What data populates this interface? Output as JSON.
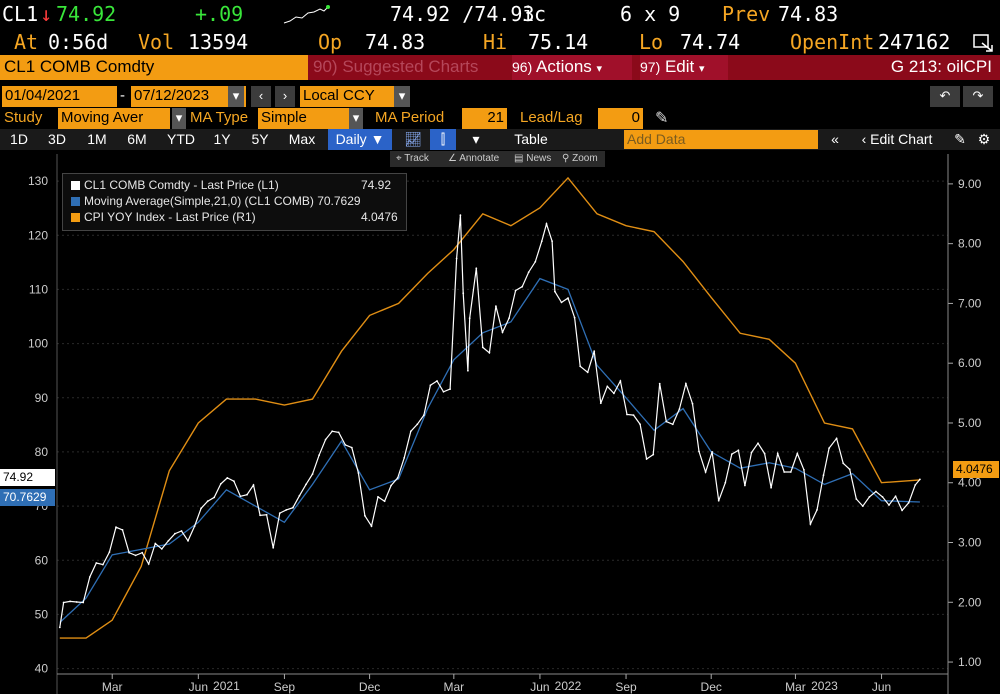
{
  "quote": {
    "ticker": "CL1",
    "arrow": "↓",
    "last": "74.92",
    "change": "+.09",
    "bid_ask": "74.92 /74.93",
    "bid_ask_suffix": "ic",
    "size": "6 x 9",
    "prev_label": "Prev",
    "prev": "74.83",
    "at_label": "At",
    "at_time": "0:56d",
    "vol_label": "Vol",
    "vol": "13594",
    "op_label": "Op",
    "op": "74.83",
    "hi_label": "Hi",
    "hi": "75.14",
    "lo_label": "Lo",
    "lo": "74.74",
    "openint_label": "OpenInt",
    "openint": "247162"
  },
  "titlebar": {
    "security": "CL1 COMB Comdty",
    "suggested_num": "90)",
    "suggested": "Suggested Charts",
    "actions_num": "96)",
    "actions": "Actions",
    "edit_num": "97)",
    "edit": "Edit",
    "chart_title": "G 213: oilCPI"
  },
  "controls": {
    "start_date": "01/04/2021",
    "end_date": "07/12/2023",
    "currency": "Local CCY",
    "study_label": "Study",
    "study": "Moving Aver",
    "ma_type_label": "MA Type",
    "ma_type": "Simple",
    "ma_period_label": "MA Period",
    "ma_period": "21",
    "lead_lag_label": "Lead/Lag",
    "lead_lag": "0",
    "periods": [
      "1D",
      "3D",
      "1M",
      "6M",
      "YTD",
      "1Y",
      "5Y",
      "Max"
    ],
    "frequency": "Daily",
    "table": "Table",
    "add_data_placeholder": "Add Data",
    "edit_chart": "Edit Chart",
    "tools": [
      "Track",
      "Annotate",
      "News",
      "Zoom"
    ]
  },
  "chart_data": {
    "type": "line",
    "legend": [
      {
        "label": "CL1 COMB Comdty - Last Price (L1)",
        "value": "74.92",
        "color": "#ffffff"
      },
      {
        "label": "Moving Average(Simple,21,0) (CL1 COMB) 70.7629",
        "value": "",
        "color": "#2f6fb5"
      },
      {
        "label": "CPI YOY Index - Last Price (R1)",
        "value": "4.0476",
        "color": "#f39c12"
      }
    ],
    "legend_placement": "top-left",
    "left_axis": {
      "ticks": [
        40,
        50,
        60,
        70,
        80,
        90,
        100,
        110,
        120,
        130
      ],
      "range": [
        39,
        135
      ]
    },
    "right_axis": {
      "ticks": [
        "1.00",
        "2.00",
        "3.00",
        "4.00",
        "5.00",
        "6.00",
        "7.00",
        "8.00",
        "9.00"
      ],
      "range": [
        0.8,
        9.5
      ]
    },
    "x_range": [
      "2021-01-04",
      "2023-07-12"
    ],
    "x_ticks": [
      {
        "label": "Mar",
        "date": "2021-03-01"
      },
      {
        "label": "Jun",
        "date": "2021-06-01"
      },
      {
        "label": "Sep",
        "date": "2021-09-01"
      },
      {
        "label": "Dec",
        "date": "2021-12-01"
      },
      {
        "label": "Mar",
        "date": "2022-03-01"
      },
      {
        "label": "Jun",
        "date": "2022-06-01"
      },
      {
        "label": "Sep",
        "date": "2022-09-01"
      },
      {
        "label": "Dec",
        "date": "2022-12-01"
      },
      {
        "label": "Mar",
        "date": "2023-03-01"
      },
      {
        "label": "Jun",
        "date": "2023-06-01"
      }
    ],
    "years": [
      {
        "label": "2021",
        "date": "2021-07-01"
      },
      {
        "label": "2022",
        "date": "2022-07-01"
      },
      {
        "label": "2023",
        "date": "2023-04-01"
      }
    ],
    "year_separators": [
      "2022-01-01",
      "2023-01-01"
    ],
    "price_series": [
      [
        "2021-01-04",
        47.6
      ],
      [
        "2021-01-08",
        52.2
      ],
      [
        "2021-01-15",
        52.4
      ],
      [
        "2021-01-22",
        52.3
      ],
      [
        "2021-01-29",
        52.2
      ],
      [
        "2021-02-05",
        56.9
      ],
      [
        "2021-02-12",
        59.5
      ],
      [
        "2021-02-19",
        59.2
      ],
      [
        "2021-02-26",
        61.5
      ],
      [
        "2021-03-05",
        66.1
      ],
      [
        "2021-03-12",
        65.6
      ],
      [
        "2021-03-19",
        61.4
      ],
      [
        "2021-03-26",
        60.9
      ],
      [
        "2021-04-02",
        61.4
      ],
      [
        "2021-04-09",
        59.3
      ],
      [
        "2021-04-16",
        63.1
      ],
      [
        "2021-04-23",
        62.1
      ],
      [
        "2021-04-30",
        63.6
      ],
      [
        "2021-05-07",
        64.9
      ],
      [
        "2021-05-14",
        65.4
      ],
      [
        "2021-05-21",
        63.6
      ],
      [
        "2021-05-28",
        66.3
      ],
      [
        "2021-06-04",
        69.6
      ],
      [
        "2021-06-11",
        70.9
      ],
      [
        "2021-06-18",
        71.6
      ],
      [
        "2021-06-25",
        74.1
      ],
      [
        "2021-07-02",
        75.2
      ],
      [
        "2021-07-09",
        74.6
      ],
      [
        "2021-07-16",
        71.8
      ],
      [
        "2021-07-23",
        72.1
      ],
      [
        "2021-07-30",
        73.9
      ],
      [
        "2021-08-06",
        68.3
      ],
      [
        "2021-08-13",
        68.4
      ],
      [
        "2021-08-20",
        62.3
      ],
      [
        "2021-08-27",
        68.7
      ],
      [
        "2021-09-03",
        69.3
      ],
      [
        "2021-09-10",
        69.7
      ],
      [
        "2021-09-17",
        71.9
      ],
      [
        "2021-09-24",
        74.0
      ],
      [
        "2021-10-01",
        75.9
      ],
      [
        "2021-10-08",
        79.4
      ],
      [
        "2021-10-15",
        82.3
      ],
      [
        "2021-10-22",
        83.8
      ],
      [
        "2021-10-29",
        83.6
      ],
      [
        "2021-11-05",
        81.3
      ],
      [
        "2021-11-12",
        80.8
      ],
      [
        "2021-11-19",
        76.1
      ],
      [
        "2021-11-26",
        68.2
      ],
      [
        "2021-12-03",
        66.3
      ],
      [
        "2021-12-10",
        71.7
      ],
      [
        "2021-12-17",
        70.9
      ],
      [
        "2021-12-24",
        73.8
      ],
      [
        "2021-12-31",
        75.2
      ],
      [
        "2022-01-07",
        78.9
      ],
      [
        "2022-01-14",
        83.8
      ],
      [
        "2022-01-21",
        85.1
      ],
      [
        "2022-01-28",
        86.8
      ],
      [
        "2022-02-04",
        92.3
      ],
      [
        "2022-02-11",
        93.1
      ],
      [
        "2022-02-18",
        91.1
      ],
      [
        "2022-02-25",
        91.6
      ],
      [
        "2022-03-04",
        115.7
      ],
      [
        "2022-03-08",
        123.7
      ],
      [
        "2022-03-11",
        109.3
      ],
      [
        "2022-03-16",
        95.0
      ],
      [
        "2022-03-18",
        104.7
      ],
      [
        "2022-03-25",
        113.9
      ],
      [
        "2022-04-01",
        99.3
      ],
      [
        "2022-04-08",
        98.3
      ],
      [
        "2022-04-15",
        106.9
      ],
      [
        "2022-04-22",
        102.1
      ],
      [
        "2022-04-29",
        104.7
      ],
      [
        "2022-05-06",
        109.8
      ],
      [
        "2022-05-13",
        110.5
      ],
      [
        "2022-05-20",
        113.2
      ],
      [
        "2022-05-27",
        115.1
      ],
      [
        "2022-06-03",
        118.9
      ],
      [
        "2022-06-08",
        122.1
      ],
      [
        "2022-06-14",
        118.9
      ],
      [
        "2022-06-17",
        109.6
      ],
      [
        "2022-06-24",
        107.6
      ],
      [
        "2022-07-01",
        108.4
      ],
      [
        "2022-07-08",
        104.8
      ],
      [
        "2022-07-14",
        95.8
      ],
      [
        "2022-07-22",
        94.7
      ],
      [
        "2022-07-29",
        98.6
      ],
      [
        "2022-08-05",
        89.0
      ],
      [
        "2022-08-12",
        92.1
      ],
      [
        "2022-08-19",
        90.8
      ],
      [
        "2022-08-26",
        93.1
      ],
      [
        "2022-09-02",
        86.9
      ],
      [
        "2022-09-09",
        86.8
      ],
      [
        "2022-09-16",
        85.1
      ],
      [
        "2022-09-23",
        78.7
      ],
      [
        "2022-09-30",
        79.5
      ],
      [
        "2022-10-07",
        92.6
      ],
      [
        "2022-10-14",
        85.6
      ],
      [
        "2022-10-21",
        85.1
      ],
      [
        "2022-10-28",
        87.9
      ],
      [
        "2022-11-04",
        92.6
      ],
      [
        "2022-11-11",
        88.9
      ],
      [
        "2022-11-18",
        80.1
      ],
      [
        "2022-11-25",
        76.3
      ],
      [
        "2022-12-02",
        80.0
      ],
      [
        "2022-12-09",
        71.0
      ],
      [
        "2022-12-16",
        74.3
      ],
      [
        "2022-12-23",
        79.6
      ],
      [
        "2022-12-30",
        80.3
      ],
      [
        "2023-01-06",
        73.8
      ],
      [
        "2023-01-13",
        79.9
      ],
      [
        "2023-01-20",
        81.6
      ],
      [
        "2023-01-27",
        79.7
      ],
      [
        "2023-02-03",
        73.4
      ],
      [
        "2023-02-10",
        79.7
      ],
      [
        "2023-02-17",
        76.3
      ],
      [
        "2023-02-24",
        76.3
      ],
      [
        "2023-03-03",
        79.7
      ],
      [
        "2023-03-10",
        76.7
      ],
      [
        "2023-03-17",
        66.7
      ],
      [
        "2023-03-24",
        69.3
      ],
      [
        "2023-03-31",
        75.7
      ],
      [
        "2023-04-06",
        80.7
      ],
      [
        "2023-04-14",
        82.5
      ],
      [
        "2023-04-21",
        77.9
      ],
      [
        "2023-04-28",
        76.8
      ],
      [
        "2023-05-05",
        71.3
      ],
      [
        "2023-05-12",
        70.0
      ],
      [
        "2023-05-19",
        71.7
      ],
      [
        "2023-05-26",
        72.7
      ],
      [
        "2023-06-02",
        71.7
      ],
      [
        "2023-06-09",
        70.2
      ],
      [
        "2023-06-16",
        71.8
      ],
      [
        "2023-06-23",
        69.2
      ],
      [
        "2023-06-30",
        70.6
      ],
      [
        "2023-07-07",
        73.9
      ],
      [
        "2023-07-12",
        74.92
      ]
    ],
    "ma_series": [
      [
        "2021-01-04",
        48.5
      ],
      [
        "2021-02-01",
        53.0
      ],
      [
        "2021-03-01",
        61.0
      ],
      [
        "2021-04-01",
        62.0
      ],
      [
        "2021-05-01",
        63.0
      ],
      [
        "2021-06-01",
        67.0
      ],
      [
        "2021-07-01",
        73.0
      ],
      [
        "2021-08-01",
        70.0
      ],
      [
        "2021-09-01",
        67.0
      ],
      [
        "2021-10-01",
        74.0
      ],
      [
        "2021-11-01",
        82.0
      ],
      [
        "2021-12-01",
        73.0
      ],
      [
        "2022-01-01",
        75.0
      ],
      [
        "2022-02-01",
        88.0
      ],
      [
        "2022-03-01",
        97.0
      ],
      [
        "2022-04-01",
        102.0
      ],
      [
        "2022-05-01",
        104.0
      ],
      [
        "2022-06-01",
        112.0
      ],
      [
        "2022-07-01",
        110.0
      ],
      [
        "2022-08-01",
        96.0
      ],
      [
        "2022-09-01",
        90.0
      ],
      [
        "2022-10-01",
        84.0
      ],
      [
        "2022-11-01",
        88.0
      ],
      [
        "2022-12-01",
        80.0
      ],
      [
        "2023-01-01",
        77.0
      ],
      [
        "2023-02-01",
        78.0
      ],
      [
        "2023-03-01",
        77.0
      ],
      [
        "2023-04-01",
        74.0
      ],
      [
        "2023-05-01",
        76.0
      ],
      [
        "2023-06-01",
        71.0
      ],
      [
        "2023-07-12",
        70.7629
      ]
    ],
    "cpi_series": [
      [
        "2021-01-04",
        1.4
      ],
      [
        "2021-02-01",
        1.4
      ],
      [
        "2021-03-01",
        1.7
      ],
      [
        "2021-04-01",
        2.6
      ],
      [
        "2021-05-01",
        4.2
      ],
      [
        "2021-06-01",
        5.0
      ],
      [
        "2021-07-01",
        5.4
      ],
      [
        "2021-08-01",
        5.4
      ],
      [
        "2021-09-01",
        5.3
      ],
      [
        "2021-10-01",
        5.4
      ],
      [
        "2021-11-01",
        6.2
      ],
      [
        "2021-12-01",
        6.8
      ],
      [
        "2022-01-01",
        7.0
      ],
      [
        "2022-02-01",
        7.5
      ],
      [
        "2022-03-01",
        7.9
      ],
      [
        "2022-04-01",
        8.5
      ],
      [
        "2022-05-01",
        8.3
      ],
      [
        "2022-06-01",
        8.6
      ],
      [
        "2022-07-01",
        9.1
      ],
      [
        "2022-08-01",
        8.5
      ],
      [
        "2022-09-01",
        8.3
      ],
      [
        "2022-10-01",
        8.2
      ],
      [
        "2022-11-01",
        7.7
      ],
      [
        "2022-12-01",
        7.1
      ],
      [
        "2023-01-01",
        6.5
      ],
      [
        "2023-02-01",
        6.4
      ],
      [
        "2023-03-01",
        6.0
      ],
      [
        "2023-04-01",
        5.0
      ],
      [
        "2023-05-01",
        4.9
      ],
      [
        "2023-06-01",
        4.0
      ],
      [
        "2023-07-12",
        4.0476
      ]
    ],
    "current_tags": {
      "price": "74.92",
      "ma": "70.7629",
      "cpi": "4.0476"
    },
    "grid": true
  }
}
